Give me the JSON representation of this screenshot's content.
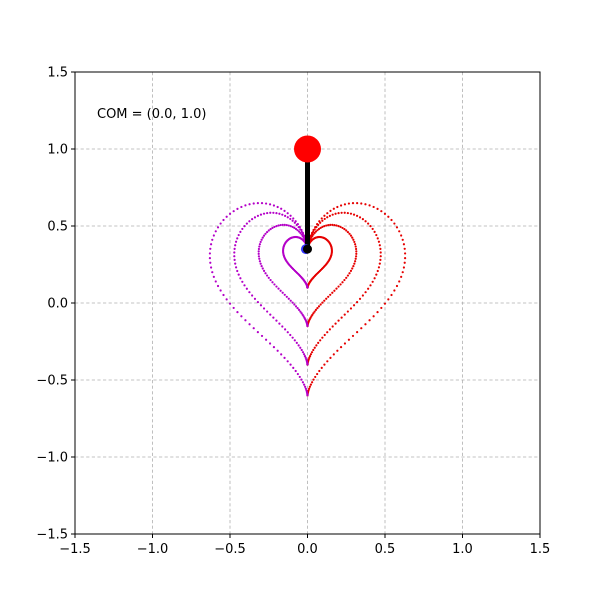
{
  "chart_data": {
    "type": "scatter",
    "title": "",
    "xlabel": "",
    "ylabel": "",
    "xlim": [
      -1.5,
      1.5
    ],
    "ylim": [
      -1.5,
      1.5
    ],
    "xticks": [
      -1.5,
      -1.0,
      -0.5,
      0.0,
      0.5,
      1.0,
      1.5
    ],
    "yticks": [
      -1.5,
      -1.0,
      -0.5,
      0.0,
      0.5,
      1.0,
      1.5
    ],
    "xtick_labels": [
      "−1.5",
      "−1.0",
      "−0.5",
      "0.0",
      "0.5",
      "1.0",
      "1.5"
    ],
    "ytick_labels": [
      "−1.5",
      "−1.0",
      "−0.5",
      "0.0",
      "0.5",
      "1.0",
      "1.5"
    ],
    "grid": true,
    "grid_style": "dashed",
    "annotation": "COM = (0.0, 1.0)",
    "trace_colors": {
      "left": "#b400c8",
      "right": "#e60000"
    },
    "trace_series": [
      {
        "shape": "heart",
        "scale": 0.6,
        "y_top_center": 0.35,
        "y_bottom_tip": -0.6
      },
      {
        "shape": "heart",
        "scale": 0.45,
        "y_top_center": 0.35,
        "y_bottom_tip": -0.4
      },
      {
        "shape": "heart",
        "scale": 0.3,
        "y_top_center": 0.35,
        "y_bottom_tip": -0.15
      },
      {
        "shape": "heart",
        "scale": 0.15,
        "y_top_center": 0.35,
        "y_bottom_tip": 0.1
      }
    ],
    "pendulum": {
      "pivot": {
        "x": 0.0,
        "y": 0.35,
        "color": "#000000"
      },
      "bob": {
        "x": 0.0,
        "y": 1.0,
        "color": "#ff0000"
      },
      "rod_color": "#000000",
      "base_marker": {
        "x": -0.01,
        "y": 0.35,
        "color": "#3030ff"
      }
    }
  }
}
